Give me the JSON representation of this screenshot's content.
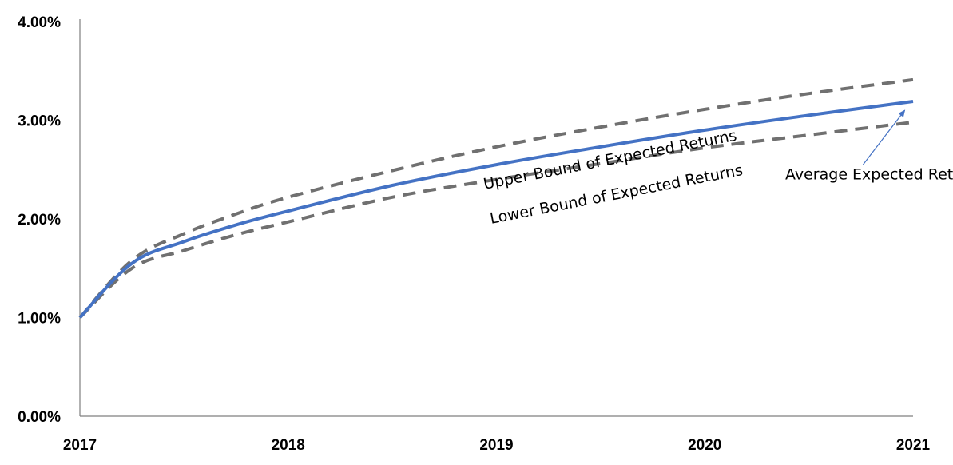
{
  "chart_data": {
    "type": "line",
    "title": "",
    "xlabel": "",
    "ylabel": "",
    "xlim": [
      2017,
      2021
    ],
    "ylim": [
      0,
      4
    ],
    "x_ticks": [
      "2017",
      "2018",
      "2019",
      "2020",
      "2021"
    ],
    "y_ticks": [
      "0.00%",
      "1.00%",
      "2.00%",
      "3.00%",
      "4.00%"
    ],
    "grid": false,
    "legend": "none",
    "series": [
      {
        "color": "#4472c4",
        "style": "solid",
        "x": [
          2017,
          2017.25,
          2017.5,
          2017.75,
          2018,
          2018.5,
          2019,
          2019.5,
          2020,
          2020.5,
          2021
        ],
        "y": [
          1.0,
          1.55,
          1.77,
          1.94,
          2.08,
          2.34,
          2.55,
          2.73,
          2.9,
          3.05,
          3.19
        ]
      },
      {
        "color": "#707070",
        "style": "dashed",
        "x": [
          2017,
          2017.25,
          2017.5,
          2017.75,
          2018,
          2018.5,
          2019,
          2019.5,
          2020,
          2020.5,
          2021
        ],
        "y": [
          1.0,
          1.58,
          1.85,
          2.05,
          2.22,
          2.49,
          2.73,
          2.93,
          3.11,
          3.27,
          3.41
        ]
      },
      {
        "color": "#707070",
        "style": "dashed",
        "x": [
          2017,
          2017.25,
          2017.5,
          2017.75,
          2018,
          2018.5,
          2019,
          2019.5,
          2020,
          2020.5,
          2021
        ],
        "y": [
          1.0,
          1.5,
          1.68,
          1.84,
          1.97,
          2.22,
          2.4,
          2.56,
          2.72,
          2.85,
          2.98
        ]
      }
    ],
    "annotations": [
      {
        "id": "upper",
        "text": "Upper Bound of Expected Returns",
        "x": 2019.55,
        "y": 2.55,
        "angle_deg": -11
      },
      {
        "id": "lower",
        "text": "Lower Bound of Expected Returns",
        "x": 2019.58,
        "y": 2.2,
        "angle_deg": -11
      },
      {
        "id": "average",
        "text": "Average Expected Return",
        "x": 2020.85,
        "y": 2.4,
        "arrow_to": [
          2020.96,
          3.1
        ],
        "arrow_from": [
          2020.76,
          2.55
        ]
      }
    ]
  }
}
